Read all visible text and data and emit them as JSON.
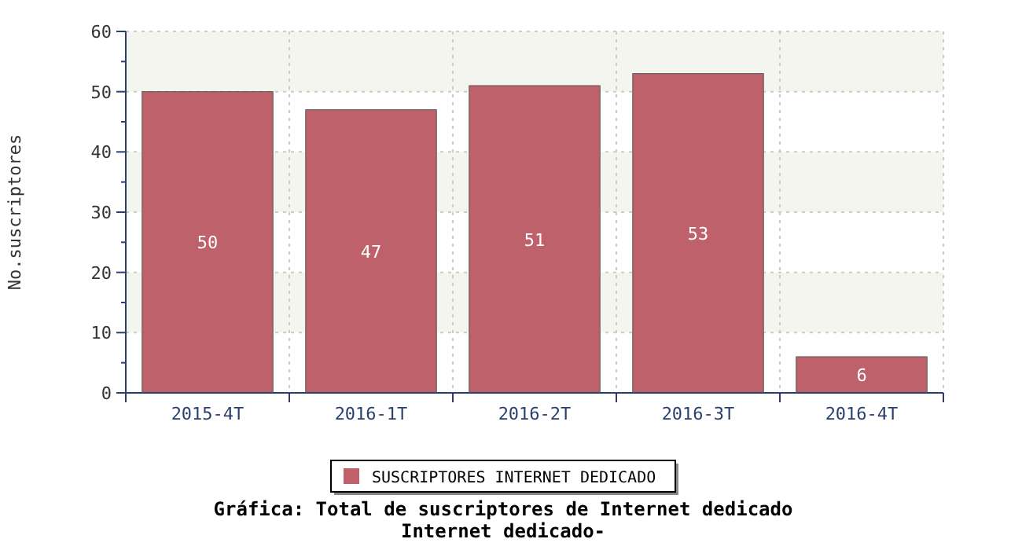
{
  "chart_data": {
    "type": "bar",
    "title": "Gráfica: Total de suscriptores de Internet dedicado",
    "subtitle": "Internet dedicado-",
    "ylabel": "No.suscriptores",
    "categories": [
      "2015-4T",
      "2016-1T",
      "2016-2T",
      "2016-3T",
      "2016-4T"
    ],
    "series": [
      {
        "name": "SUSCRIPTORES INTERNET DEDICADO",
        "color": "#bf616b",
        "values": [
          50,
          47,
          51,
          53,
          6
        ]
      }
    ],
    "ylim": [
      0,
      60
    ],
    "yticks": [
      0,
      10,
      20,
      30,
      40,
      50,
      60
    ],
    "grid": true,
    "legend": "bottom",
    "data_labels": true
  }
}
